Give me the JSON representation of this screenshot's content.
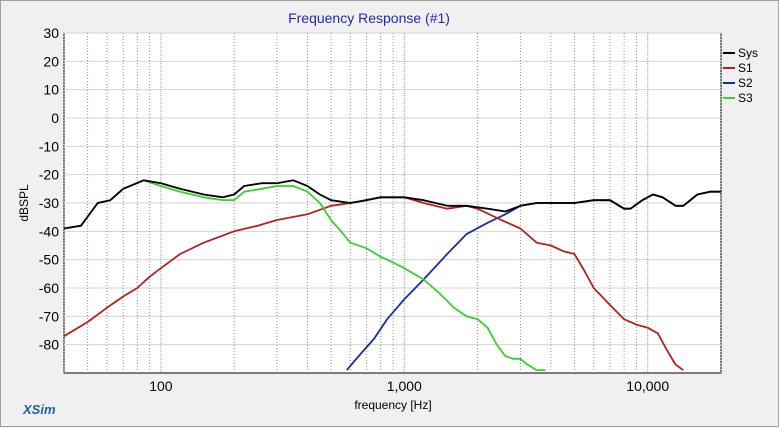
{
  "app": {
    "brand": "XSim"
  },
  "chart_data": {
    "type": "line",
    "title": "Frequency Response (#1)",
    "xlabel": "frequency [Hz]",
    "ylabel": "dBSPL",
    "xscale": "log",
    "xlim": [
      40,
      20000
    ],
    "ylim": [
      -90,
      30
    ],
    "grid": true,
    "legend_position": "top-right",
    "x_ticks": [
      {
        "value": 100,
        "label": "100"
      },
      {
        "value": 1000,
        "label": "1,000"
      },
      {
        "value": 10000,
        "label": "10,000"
      }
    ],
    "y_ticks": [
      {
        "value": 30,
        "label": "30"
      },
      {
        "value": 20,
        "label": "20"
      },
      {
        "value": 10,
        "label": "10"
      },
      {
        "value": 0,
        "label": "0"
      },
      {
        "value": -10,
        "label": "-10"
      },
      {
        "value": -20,
        "label": "-20"
      },
      {
        "value": -30,
        "label": "-30"
      },
      {
        "value": -40,
        "label": "-40"
      },
      {
        "value": -50,
        "label": "-50"
      },
      {
        "value": -60,
        "label": "-60"
      },
      {
        "value": -70,
        "label": "-70"
      },
      {
        "value": -80,
        "label": "-80"
      }
    ],
    "series": [
      {
        "name": "Sys",
        "color": "#000000",
        "points": [
          [
            40,
            -39
          ],
          [
            47,
            -38
          ],
          [
            55,
            -30
          ],
          [
            62,
            -29
          ],
          [
            70,
            -25
          ],
          [
            85,
            -22
          ],
          [
            100,
            -23
          ],
          [
            120,
            -25
          ],
          [
            150,
            -27
          ],
          [
            180,
            -28
          ],
          [
            200,
            -27
          ],
          [
            220,
            -24
          ],
          [
            260,
            -23
          ],
          [
            300,
            -23
          ],
          [
            350,
            -22
          ],
          [
            400,
            -24
          ],
          [
            450,
            -27
          ],
          [
            500,
            -29
          ],
          [
            600,
            -30
          ],
          [
            700,
            -29
          ],
          [
            800,
            -28
          ],
          [
            1000,
            -28
          ],
          [
            1200,
            -29
          ],
          [
            1500,
            -31
          ],
          [
            1800,
            -31
          ],
          [
            2200,
            -32
          ],
          [
            2600,
            -33
          ],
          [
            3000,
            -31
          ],
          [
            3500,
            -30
          ],
          [
            5000,
            -30
          ],
          [
            6000,
            -29
          ],
          [
            7000,
            -29
          ],
          [
            8000,
            -32
          ],
          [
            8500,
            -32
          ],
          [
            9500,
            -29
          ],
          [
            10500,
            -27
          ],
          [
            11500,
            -28
          ],
          [
            13000,
            -31
          ],
          [
            14000,
            -31
          ],
          [
            16000,
            -27
          ],
          [
            18000,
            -26
          ],
          [
            20000,
            -26
          ]
        ]
      },
      {
        "name": "S1",
        "color": "#b22222",
        "points": [
          [
            40,
            -77
          ],
          [
            50,
            -72
          ],
          [
            60,
            -67
          ],
          [
            70,
            -63
          ],
          [
            80,
            -60
          ],
          [
            90,
            -56
          ],
          [
            100,
            -53
          ],
          [
            120,
            -48
          ],
          [
            150,
            -44
          ],
          [
            200,
            -40
          ],
          [
            250,
            -38
          ],
          [
            300,
            -36
          ],
          [
            400,
            -34
          ],
          [
            500,
            -31
          ],
          [
            600,
            -30
          ],
          [
            800,
            -28
          ],
          [
            1000,
            -28
          ],
          [
            1200,
            -30
          ],
          [
            1500,
            -32
          ],
          [
            1800,
            -31
          ],
          [
            2000,
            -32
          ],
          [
            2500,
            -36
          ],
          [
            3000,
            -39
          ],
          [
            3500,
            -44
          ],
          [
            4000,
            -45
          ],
          [
            4500,
            -47
          ],
          [
            5000,
            -48
          ],
          [
            5500,
            -54
          ],
          [
            6000,
            -60
          ],
          [
            7000,
            -66
          ],
          [
            8000,
            -71
          ],
          [
            9000,
            -73
          ],
          [
            10000,
            -74
          ],
          [
            11000,
            -76
          ],
          [
            12000,
            -82
          ],
          [
            13000,
            -87
          ],
          [
            14000,
            -89
          ]
        ]
      },
      {
        "name": "S2",
        "color": "#1a2f9e",
        "points": [
          [
            580,
            -89
          ],
          [
            650,
            -84
          ],
          [
            750,
            -78
          ],
          [
            850,
            -71
          ],
          [
            1000,
            -64
          ],
          [
            1200,
            -57
          ],
          [
            1500,
            -48
          ],
          [
            1800,
            -41
          ],
          [
            2200,
            -37
          ],
          [
            2600,
            -34
          ],
          [
            3000,
            -31
          ],
          [
            3500,
            -30
          ],
          [
            5000,
            -30
          ],
          [
            6000,
            -29
          ],
          [
            7000,
            -29
          ],
          [
            8000,
            -32
          ],
          [
            8500,
            -32
          ],
          [
            9500,
            -29
          ],
          [
            10500,
            -27
          ],
          [
            11500,
            -28
          ],
          [
            13000,
            -31
          ],
          [
            14000,
            -31
          ],
          [
            16000,
            -27
          ],
          [
            18000,
            -26
          ],
          [
            20000,
            -26
          ]
        ]
      },
      {
        "name": "S3",
        "color": "#3ccc33",
        "points": [
          [
            40,
            -39
          ],
          [
            47,
            -38
          ],
          [
            55,
            -30
          ],
          [
            62,
            -29
          ],
          [
            70,
            -25
          ],
          [
            85,
            -22
          ],
          [
            100,
            -24
          ],
          [
            120,
            -26
          ],
          [
            150,
            -28
          ],
          [
            180,
            -29
          ],
          [
            200,
            -29
          ],
          [
            220,
            -26
          ],
          [
            260,
            -25
          ],
          [
            300,
            -24
          ],
          [
            350,
            -24
          ],
          [
            400,
            -26
          ],
          [
            450,
            -30
          ],
          [
            500,
            -36
          ],
          [
            550,
            -40
          ],
          [
            600,
            -44
          ],
          [
            700,
            -46
          ],
          [
            800,
            -49
          ],
          [
            900,
            -51
          ],
          [
            1000,
            -53
          ],
          [
            1200,
            -57
          ],
          [
            1400,
            -62
          ],
          [
            1600,
            -67
          ],
          [
            1800,
            -70
          ],
          [
            2000,
            -71
          ],
          [
            2200,
            -74
          ],
          [
            2400,
            -80
          ],
          [
            2600,
            -84
          ],
          [
            2800,
            -85
          ],
          [
            3000,
            -85
          ],
          [
            3200,
            -87
          ],
          [
            3500,
            -89
          ],
          [
            3800,
            -89
          ]
        ]
      }
    ]
  }
}
